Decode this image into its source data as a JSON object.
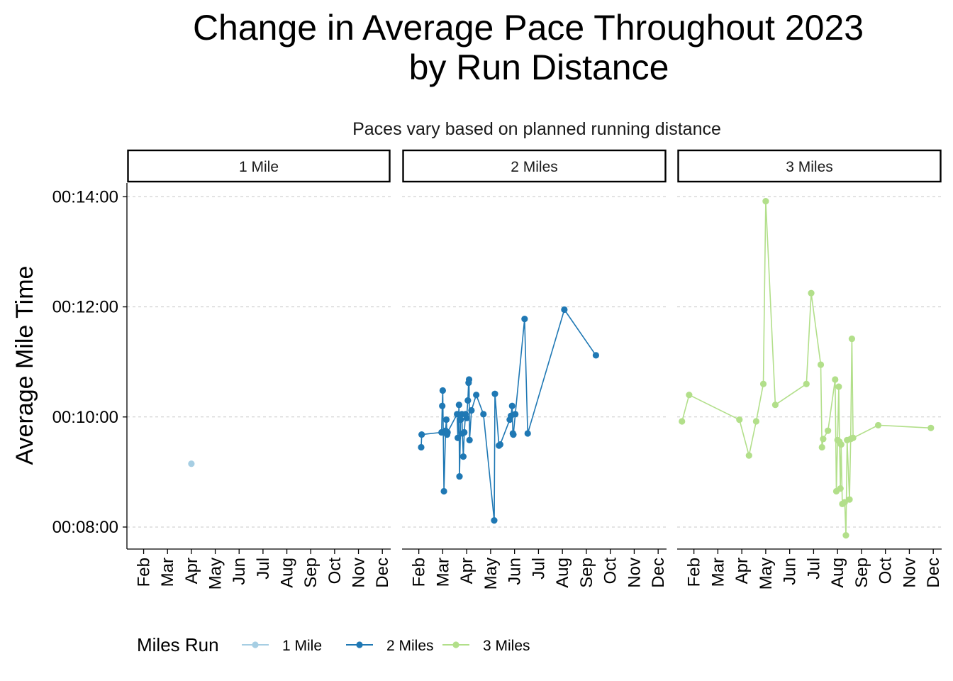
{
  "chart_data": {
    "type": "line",
    "title_line1": "Change in Average Pace Throughout 2023",
    "title_line2": "by Run Distance",
    "subtitle": "Paces vary based on planned running distance",
    "ylabel": "Average Mile Time",
    "xlabel": "",
    "y_ticks": [
      {
        "value": 8,
        "label": "00:08:00"
      },
      {
        "value": 10,
        "label": "00:10:00"
      },
      {
        "value": 12,
        "label": "00:12:00"
      },
      {
        "value": 14,
        "label": "00:14:00"
      }
    ],
    "ylim": [
      7.6,
      14.25
    ],
    "x_ticks": [
      {
        "month": 2,
        "label": "Feb"
      },
      {
        "month": 3,
        "label": "Mar"
      },
      {
        "month": 4,
        "label": "Apr"
      },
      {
        "month": 5,
        "label": "May"
      },
      {
        "month": 6,
        "label": "Jun"
      },
      {
        "month": 7,
        "label": "Jul"
      },
      {
        "month": 8,
        "label": "Aug"
      },
      {
        "month": 9,
        "label": "Sep"
      },
      {
        "month": 10,
        "label": "Oct"
      },
      {
        "month": 11,
        "label": "Nov"
      },
      {
        "month": 12,
        "label": "Dec"
      }
    ],
    "xlim": [
      1.3,
      12.35
    ],
    "x_units": "month of 2023 (fractional, 1.0 = Jan 1)",
    "y_units": "minutes per mile",
    "grid": "horizontal dashed major",
    "legend": {
      "title": "Miles Run",
      "position": "bottom-left",
      "entries": [
        "1 Mile",
        "2 Miles",
        "3 Miles"
      ]
    },
    "panels": [
      {
        "name": "1 Mile",
        "color": "#A6CEE3",
        "points": [
          [
            4.0,
            9.15
          ]
        ]
      },
      {
        "name": "2 Miles",
        "color": "#1F78B4",
        "points": [
          [
            2.1,
            9.45
          ],
          [
            2.12,
            9.68
          ],
          [
            2.95,
            9.72
          ],
          [
            2.98,
            10.2
          ],
          [
            3.0,
            10.48
          ],
          [
            3.05,
            8.65
          ],
          [
            3.12,
            9.75
          ],
          [
            3.15,
            9.95
          ],
          [
            3.18,
            9.68
          ],
          [
            3.2,
            9.72
          ],
          [
            3.6,
            10.05
          ],
          [
            3.63,
            9.62
          ],
          [
            3.68,
            10.22
          ],
          [
            3.7,
            8.92
          ],
          [
            3.75,
            9.95
          ],
          [
            3.8,
            10.05
          ],
          [
            3.82,
            9.7
          ],
          [
            3.86,
            9.28
          ],
          [
            3.9,
            9.72
          ],
          [
            3.95,
            10.05
          ],
          [
            4.0,
            9.98
          ],
          [
            4.05,
            10.3
          ],
          [
            4.08,
            10.62
          ],
          [
            4.1,
            10.68
          ],
          [
            4.12,
            9.58
          ],
          [
            4.2,
            10.12
          ],
          [
            4.4,
            10.4
          ],
          [
            4.7,
            10.05
          ],
          [
            5.15,
            8.12
          ],
          [
            5.18,
            10.42
          ],
          [
            5.35,
            9.48
          ],
          [
            5.4,
            9.5
          ],
          [
            5.8,
            9.95
          ],
          [
            5.85,
            10.02
          ],
          [
            5.9,
            10.2
          ],
          [
            5.93,
            9.7
          ],
          [
            5.95,
            9.68
          ],
          [
            6.03,
            10.05
          ],
          [
            6.42,
            11.78
          ],
          [
            6.55,
            9.7
          ],
          [
            8.08,
            11.95
          ],
          [
            9.4,
            11.12
          ]
        ]
      },
      {
        "name": "3 Miles",
        "color": "#B2DF8A",
        "points": [
          [
            1.5,
            9.92
          ],
          [
            1.8,
            10.4
          ],
          [
            3.9,
            9.95
          ],
          [
            4.3,
            9.3
          ],
          [
            4.6,
            9.92
          ],
          [
            4.9,
            10.6
          ],
          [
            5.0,
            13.92
          ],
          [
            5.4,
            10.22
          ],
          [
            6.7,
            10.6
          ],
          [
            6.9,
            12.25
          ],
          [
            7.3,
            10.95
          ],
          [
            7.35,
            9.45
          ],
          [
            7.4,
            9.6
          ],
          [
            7.6,
            9.75
          ],
          [
            7.9,
            10.68
          ],
          [
            7.95,
            8.65
          ],
          [
            8.0,
            9.58
          ],
          [
            8.05,
            10.55
          ],
          [
            8.08,
            9.55
          ],
          [
            8.12,
            8.7
          ],
          [
            8.15,
            9.5
          ],
          [
            8.2,
            8.42
          ],
          [
            8.3,
            8.45
          ],
          [
            8.35,
            7.85
          ],
          [
            8.4,
            9.58
          ],
          [
            8.5,
            8.5
          ],
          [
            8.55,
            9.6
          ],
          [
            8.6,
            11.42
          ],
          [
            8.65,
            9.62
          ],
          [
            9.7,
            9.85
          ],
          [
            11.9,
            9.8
          ]
        ]
      }
    ]
  }
}
